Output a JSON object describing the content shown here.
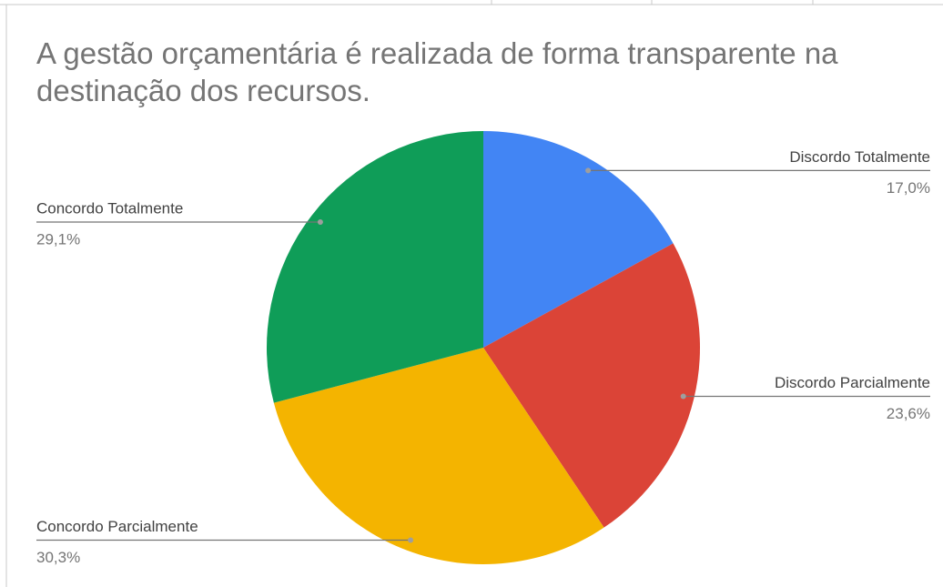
{
  "chart_data": {
    "type": "pie",
    "title": "A gestão orçamentária é realizada de forma transparente na destinação dos recursos.",
    "categories": [
      "Discordo Totalmente",
      "Discordo Parcialmente",
      "Concordo Parcialmente",
      "Concordo Totalmente"
    ],
    "values": [
      17.0,
      23.6,
      30.3,
      29.1
    ],
    "value_labels": [
      "17,0%",
      "23,6%",
      "30,3%",
      "29,1%"
    ],
    "colors": [
      "#4285f4",
      "#db4437",
      "#f4b400",
      "#0f9d58"
    ]
  }
}
